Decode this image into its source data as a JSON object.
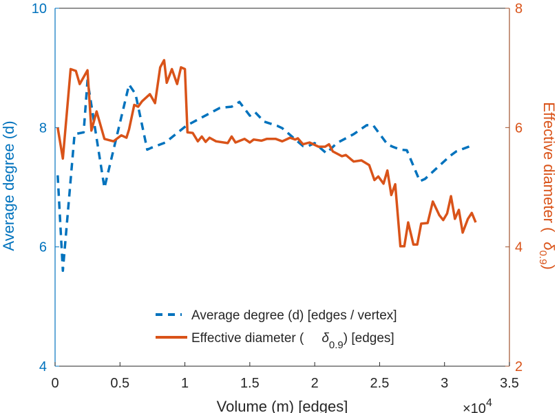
{
  "colors": {
    "left": "#0072BD",
    "right": "#D95319",
    "axis": "#262626"
  },
  "chart_data": {
    "type": "line",
    "xlabel": "Volume (m) [edges]",
    "x_multiplier": "×10",
    "x_multiplier_exp": "4",
    "ylabel_left": "Average degree (d)",
    "ylabel_right_prefix": "Effective diameter (",
    "ylabel_right_symbol": "δ",
    "ylabel_right_sub": "0.9",
    "ylabel_right_suffix": ")",
    "xlim": [
      0,
      3.5
    ],
    "ylim_left": [
      4,
      10
    ],
    "ylim_right": [
      2,
      8
    ],
    "xticks": [
      "0",
      "0.5",
      "1",
      "1.5",
      "2",
      "2.5",
      "3",
      "3.5"
    ],
    "yticks_left": [
      "4",
      "6",
      "8",
      "10"
    ],
    "yticks_right": [
      "2",
      "4",
      "6",
      "8"
    ],
    "legend": {
      "placement": "bottom-center",
      "entries": [
        {
          "label": "Average degree (d) [edges / vertex]"
        },
        {
          "label_prefix": "Effective diameter (",
          "symbol": "δ",
          "sub": "0.9",
          "label_suffix": ") [edges]"
        }
      ]
    },
    "series": [
      {
        "name": "Average degree (d) [edges / vertex]",
        "axis": "left",
        "style": "dashed",
        "x": [
          0.02,
          0.06,
          0.15,
          0.22,
          0.25,
          0.38,
          0.57,
          0.62,
          0.71,
          0.74,
          0.85,
          1.01,
          1.27,
          1.36,
          1.42,
          1.5,
          1.54,
          1.61,
          1.71,
          1.75,
          1.91,
          1.95,
          2.0,
          2.09,
          2.17,
          2.3,
          2.4,
          2.45,
          2.56,
          2.6,
          2.66,
          2.71,
          2.81,
          2.85,
          3.04,
          3.09,
          3.2
        ],
        "y": [
          7.2,
          5.6,
          7.89,
          7.92,
          8.79,
          6.99,
          8.72,
          8.56,
          7.63,
          7.66,
          7.75,
          8.03,
          8.33,
          8.35,
          8.43,
          8.2,
          8.26,
          8.1,
          8.03,
          7.99,
          7.69,
          7.69,
          7.74,
          7.57,
          7.74,
          7.89,
          8.04,
          8.04,
          7.72,
          7.68,
          7.63,
          7.62,
          7.1,
          7.14,
          7.52,
          7.6,
          7.69
        ]
      },
      {
        "name": "Effective diameter (δ0.9) [edges]",
        "axis": "right",
        "style": "solid",
        "x": [
          0.02,
          0.06,
          0.12,
          0.16,
          0.19,
          0.25,
          0.28,
          0.32,
          0.38,
          0.45,
          0.51,
          0.55,
          0.57,
          0.61,
          0.64,
          0.67,
          0.73,
          0.77,
          0.81,
          0.84,
          0.86,
          0.9,
          0.94,
          0.97,
          1.0,
          1.02,
          1.06,
          1.1,
          1.13,
          1.16,
          1.19,
          1.24,
          1.33,
          1.36,
          1.39,
          1.46,
          1.5,
          1.53,
          1.59,
          1.63,
          1.7,
          1.75,
          1.81,
          1.85,
          1.87,
          1.91,
          1.96,
          2.03,
          2.08,
          2.11,
          2.14,
          2.21,
          2.24,
          2.3,
          2.36,
          2.42,
          2.46,
          2.49,
          2.53,
          2.56,
          2.59,
          2.62,
          2.66,
          2.69,
          2.72,
          2.76,
          2.79,
          2.82,
          2.87,
          2.91,
          2.96,
          2.99,
          3.02,
          3.05,
          3.08,
          3.11,
          3.14,
          3.18,
          3.21,
          3.24
        ],
        "y": [
          6.0,
          5.48,
          6.98,
          6.95,
          6.73,
          6.96,
          5.95,
          6.27,
          5.81,
          5.77,
          5.87,
          5.83,
          5.97,
          6.38,
          6.35,
          6.44,
          6.56,
          6.41,
          7.01,
          7.13,
          6.75,
          6.98,
          6.73,
          7.01,
          6.98,
          5.92,
          5.91,
          5.77,
          5.85,
          5.76,
          5.83,
          5.77,
          5.74,
          5.85,
          5.75,
          5.81,
          5.75,
          5.8,
          5.78,
          5.81,
          5.81,
          5.77,
          5.83,
          5.8,
          5.82,
          5.72,
          5.75,
          5.68,
          5.68,
          5.72,
          5.6,
          5.52,
          5.54,
          5.43,
          5.45,
          5.37,
          5.12,
          5.18,
          5.06,
          5.28,
          4.87,
          5.05,
          4.01,
          4.01,
          4.41,
          4.04,
          4.04,
          4.39,
          4.4,
          4.76,
          4.53,
          4.45,
          4.56,
          4.85,
          4.47,
          4.62,
          4.24,
          4.47,
          4.57,
          4.41
        ]
      }
    ]
  }
}
